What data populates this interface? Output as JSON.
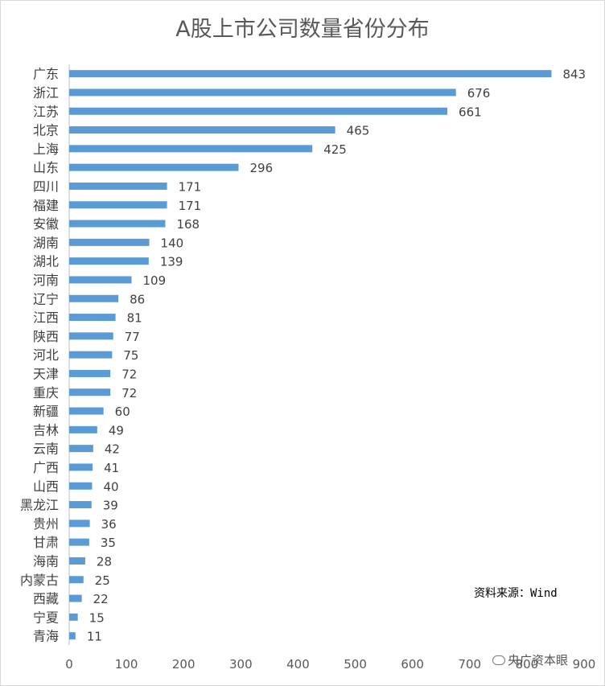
{
  "chart_data": {
    "type": "bar",
    "orientation": "horizontal",
    "title": "A股上市公司数量省份分布",
    "categories": [
      "广东",
      "浙江",
      "江苏",
      "北京",
      "上海",
      "山东",
      "四川",
      "福建",
      "安徽",
      "湖南",
      "湖北",
      "河南",
      "辽宁",
      "江西",
      "陕西",
      "河北",
      "天津",
      "重庆",
      "新疆",
      "吉林",
      "云南",
      "广西",
      "山西",
      "黑龙江",
      "贵州",
      "甘肃",
      "海南",
      "内蒙古",
      "西藏",
      "宁夏",
      "青海"
    ],
    "values": [
      843,
      676,
      661,
      465,
      425,
      296,
      171,
      171,
      168,
      140,
      139,
      109,
      86,
      81,
      77,
      75,
      72,
      72,
      60,
      49,
      42,
      41,
      40,
      39,
      36,
      35,
      28,
      25,
      22,
      15,
      11
    ],
    "xlim": [
      0,
      900
    ],
    "x_ticks": [
      0,
      100,
      200,
      300,
      400,
      500,
      600,
      700,
      800,
      900
    ],
    "bar_color": "#5b9bd5",
    "grid": false,
    "legend": "none",
    "data_labels": true
  },
  "annotation": {
    "source": "资料来源：Wind"
  },
  "watermark": {
    "text": "央广资本眼",
    "icon": "wechat-icon"
  }
}
